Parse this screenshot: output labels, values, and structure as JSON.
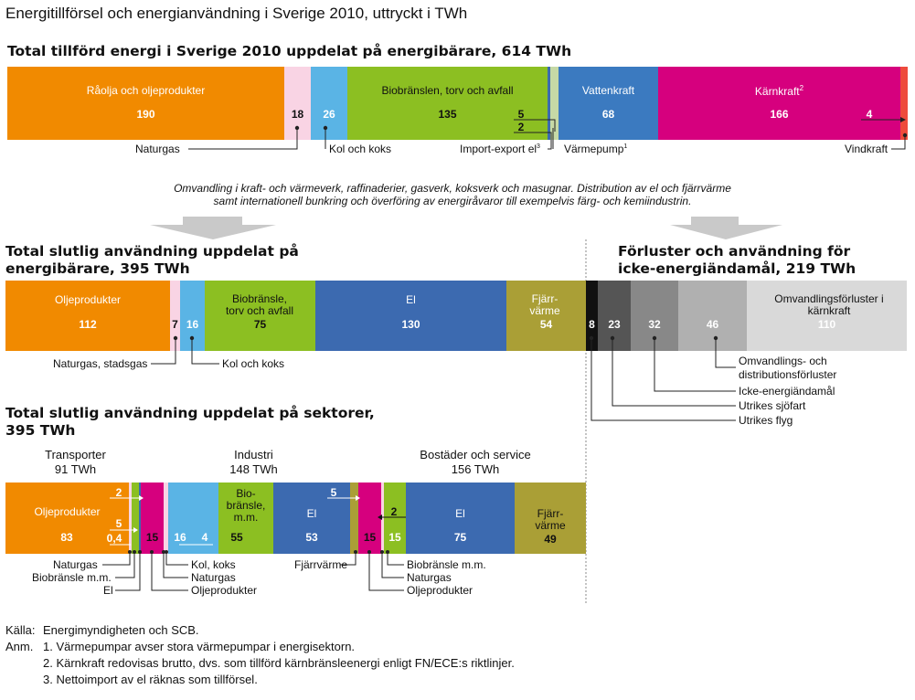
{
  "title": "Energitillförsel och energianvändning i Sverige 2010, uttryckt i TWh",
  "supply": {
    "title": "Total tillförd energi i Sverige 2010 uppdelat på energibärare, 614 TWh",
    "segments": [
      {
        "label": "Råolja och oljeprodukter",
        "value": "190",
        "color": "#f18a00"
      },
      {
        "label": "",
        "value": "18",
        "color": "#f9d4e4"
      },
      {
        "label": "",
        "value": "26",
        "color": "#5ab4e5"
      },
      {
        "label": "Biobränslen, torv och avfall",
        "value": "135",
        "color": "#8cbf22"
      },
      {
        "label": "",
        "value": "",
        "color": "#3c6ab0"
      },
      {
        "label": "",
        "value": "",
        "color": "#c6d9a6"
      },
      {
        "label": "Vattenkraft",
        "value": "68",
        "color": "#3b7ac0"
      },
      {
        "label": "Kärnkraft",
        "sup": "2",
        "value": "166",
        "color": "#d6007e"
      },
      {
        "label": "",
        "value": "",
        "color": "#ee4b3c"
      }
    ],
    "inner_values": {
      "import": "5",
      "heatpump": "2",
      "wind": "4"
    },
    "callouts": {
      "naturgas": "Naturgas",
      "kol": "Kol och koks",
      "import": "Import-export el",
      "import_sup": "3",
      "heatpump": "Värmepump",
      "heatpump_sup": "1",
      "wind": "Vindkraft"
    }
  },
  "transform_text": {
    "line1": "Omvandling i kraft- och värmeverk, raffinaderier, gasverk, koksverk och masugnar. Distribution av el och fjärrvärme",
    "line2": "samt internationell bunkring och överföring av energiråvaror till exempelvis färg- och kemiindustrin."
  },
  "final_use": {
    "title_l1": "Total slutlig användning uppdelat på",
    "title_l2": "energibärare, 395 TWh",
    "segments": [
      {
        "label": "Oljeprodukter",
        "value": "112",
        "color": "#f18a00"
      },
      {
        "label": "",
        "value": "7",
        "color": "#f9d4e4"
      },
      {
        "label": "",
        "value": "16",
        "color": "#5ab4e5"
      },
      {
        "label": "Biobränsle, torv och avfall",
        "value": "75",
        "color": "#8cbf22"
      },
      {
        "label": "El",
        "value": "130",
        "color": "#3c6ab0"
      },
      {
        "label": "Fjärr- värme",
        "value": "54",
        "color": "#aa9f36"
      }
    ],
    "callouts": {
      "gas": "Naturgas, stadsgas",
      "kol": "Kol och koks"
    }
  },
  "losses": {
    "title_l1": "Förluster och användning för",
    "title_l2": "icke-energiändamål, 219 TWh",
    "segments": [
      {
        "label": "",
        "value": "8",
        "color": "#111111"
      },
      {
        "label": "",
        "value": "23",
        "color": "#555555"
      },
      {
        "label": "",
        "value": "32",
        "color": "#888888"
      },
      {
        "label": "",
        "value": "46",
        "color": "#b0b0b0"
      },
      {
        "label": "Omvandlingsförluster i kärnkraft",
        "value": "110",
        "color": "#d9d9d9"
      }
    ],
    "callouts": {
      "dist": "Omvandlings- och",
      "dist2": "distributionsförluster",
      "nonenergy": "Icke-energiändamål",
      "sea": "Utrikes sjöfart",
      "air": "Utrikes flyg"
    }
  },
  "sectors": {
    "title_l1": "Total slutlig användning uppdelat på sektorer,",
    "title_l2": "395 TWh",
    "groups": [
      {
        "name": "Transporter",
        "total": "91 TWh"
      },
      {
        "name": "Industri",
        "total": "148 TWh"
      },
      {
        "name": "Bostäder och service",
        "total": "156 TWh"
      }
    ],
    "values": {
      "olja_t": "83",
      "t_small1": "2",
      "t_small2": "5",
      "t_small3": "0,4",
      "olja_i": "15",
      "kol_i": "16",
      "gas_i": "4",
      "bio_i": "55",
      "el_i": "53",
      "i_small": "5",
      "olja_b": "15",
      "bio_b": "15",
      "b_small": "2",
      "el_b": "75",
      "fj_b": "49"
    },
    "labels": {
      "olja": "Oljeprodukter",
      "bio": "Bio- bränsle, m.m.",
      "el": "El",
      "fj": "Fjärr- värme"
    },
    "callouts": {
      "t_gas": "Naturgas",
      "t_bio": "Biobränsle m.m.",
      "t_el": "El",
      "i_kol": "Kol, koks",
      "i_gas": "Naturgas",
      "i_olja": "Oljeprodukter",
      "i_fj": "Fjärrvärme",
      "b_bio": "Biobränsle m.m.",
      "b_gas": "Naturgas",
      "b_olja": "Oljeprodukter"
    }
  },
  "footer": {
    "source_label": "Källa:",
    "source": "Energimyndigheten och SCB.",
    "notes_label": "Anm.",
    "note1": "1. Värmepumpar avser stora värmepumpar i energisektorn.",
    "note2": "2. Kärnkraft redovisas brutto, dvs. som tillförd kärnbränsleenergi enligt FN/ECE:s riktlinjer.",
    "note3": "3. Nettoimport av el räknas som tillförsel."
  }
}
